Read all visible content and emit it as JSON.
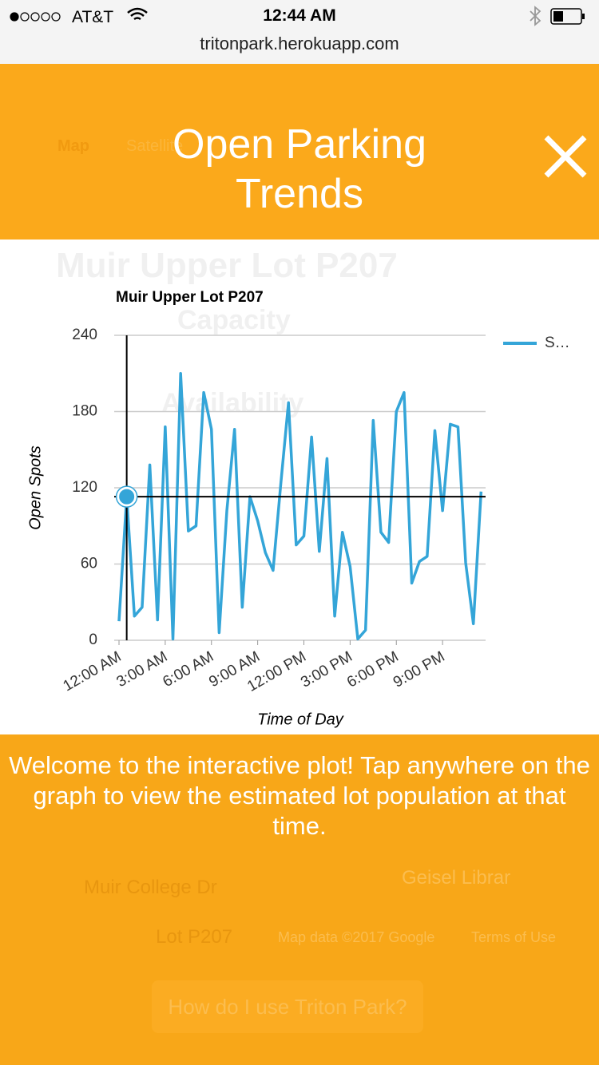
{
  "status_bar": {
    "carrier": "AT&T",
    "time": "12:44 AM",
    "url": "tritonpark.herokuapp.com"
  },
  "background": {
    "map_tab": "Map",
    "satellite_tab": "Satellite",
    "lot_name": "Muir Upper Lot P207",
    "capacity": "Capacity",
    "availability": "Availability",
    "street": "Muir College Dr",
    "library": "Geisel Librar",
    "lot_label": "Lot P207",
    "map_data": "Map data ©2017 Google",
    "terms": "Terms of Use",
    "help_button": "How do I use Triton Park?"
  },
  "overlay": {
    "title": "Open Parking Trends",
    "instructions": "Welcome to the interactive plot! Tap anywhere on the graph to view the estimated lot population at that time."
  },
  "chart_data": {
    "type": "line",
    "title": "Muir Upper Lot P207",
    "x_label": "Time of Day",
    "y_label": "Open Spots",
    "x": [
      0,
      0.5,
      1,
      1.5,
      2,
      2.5,
      3,
      3.5,
      4,
      4.5,
      5,
      5.5,
      6,
      6.5,
      7,
      7.5,
      8,
      8.5,
      9,
      9.5,
      10,
      10.5,
      11,
      11.5,
      12,
      12.5,
      13,
      13.5,
      14,
      14.5,
      15,
      15.5,
      16,
      16.5,
      17,
      17.5,
      18,
      18.5,
      19,
      19.5,
      20,
      20.5,
      21,
      21.5,
      22,
      22.5,
      23,
      23.5
    ],
    "series": [
      {
        "name": "S…",
        "color": "#34a5d8",
        "values": [
          15,
          113,
          19,
          26,
          138,
          16,
          168,
          1,
          210,
          86,
          90,
          195,
          166,
          6,
          102,
          166,
          26,
          113,
          94,
          69,
          55,
          123,
          187,
          75,
          82,
          160,
          70,
          143,
          19,
          85,
          58,
          1,
          8,
          173,
          85,
          77,
          180,
          195,
          45,
          62,
          66,
          165,
          102,
          170,
          168,
          61,
          13,
          117
        ]
      }
    ],
    "xlim": [
      0,
      24
    ],
    "xticks": [
      {
        "value": 0,
        "label": "12:00 AM"
      },
      {
        "value": 3,
        "label": "3:00 AM"
      },
      {
        "value": 6,
        "label": "6:00 AM"
      },
      {
        "value": 9,
        "label": "9:00 AM"
      },
      {
        "value": 12,
        "label": "12:00 PM"
      },
      {
        "value": 15,
        "label": "3:00 PM"
      },
      {
        "value": 18,
        "label": "6:00 PM"
      },
      {
        "value": 21,
        "label": "9:00 PM"
      }
    ],
    "ylim": [
      0,
      240
    ],
    "yticks": [
      0,
      60,
      120,
      180,
      240
    ],
    "grid": true,
    "legend": "right",
    "crosshair_index": 1
  }
}
